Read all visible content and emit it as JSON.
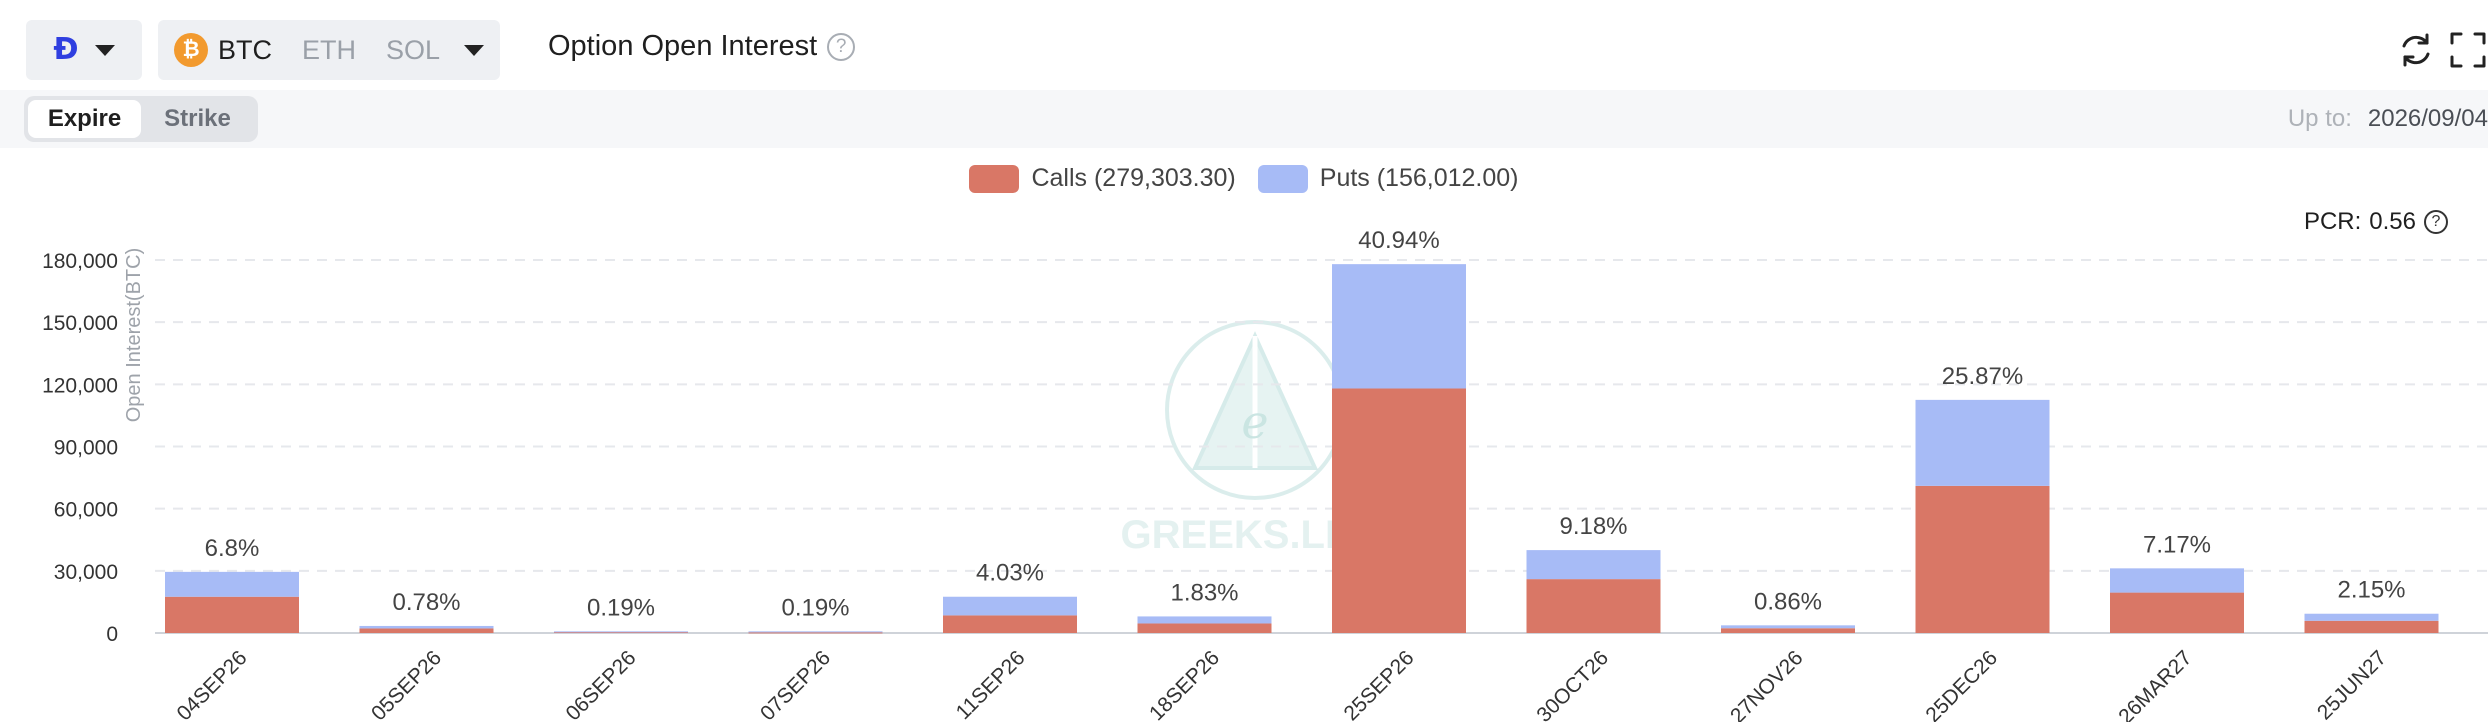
{
  "header": {
    "exchange_icon": "deribit-logo-icon",
    "exchange_glyph": "Ð",
    "coins": [
      {
        "label": "BTC",
        "active": true,
        "icon": "bitcoin-icon",
        "icon_glyph": "₿"
      },
      {
        "label": "ETH",
        "active": false
      },
      {
        "label": "SOL",
        "active": false
      }
    ],
    "title": "Option Open Interest",
    "help_glyph": "?"
  },
  "toolbar": {
    "tabs": [
      {
        "label": "Expire",
        "active": true
      },
      {
        "label": "Strike",
        "active": false
      }
    ],
    "upto_label": "Up to:",
    "upto_value": "2026/09/04"
  },
  "legend": {
    "calls_label": "Calls (279,303.30)",
    "puts_label": "Puts (156,012.00)"
  },
  "pcr": {
    "label": "PCR:",
    "value": "0.56",
    "help_glyph": "?"
  },
  "watermark": {
    "text": "GREEKS.LIVE"
  },
  "colors": {
    "calls": "#d97766",
    "puts": "#a7bbf6",
    "grid": "#e6e8ec",
    "axis_text": "#333333"
  },
  "chart_data": {
    "type": "bar",
    "stacked": true,
    "ylabel": "Open Interest(BTC)",
    "ylim": [
      0,
      180000
    ],
    "yticks": [
      0,
      30000,
      60000,
      90000,
      120000,
      150000,
      180000
    ],
    "ytick_labels": [
      "0",
      "30,000",
      "60,000",
      "90,000",
      "120,000",
      "150,000",
      "180,000"
    ],
    "grid": true,
    "legend_position": "top-center",
    "categories": [
      "04SEP26",
      "05SEP26",
      "06SEP26",
      "07SEP26",
      "11SEP26",
      "18SEP26",
      "25SEP26",
      "30OCT26",
      "27NOV26",
      "25DEC26",
      "26MAR27",
      "25JUN27"
    ],
    "series": [
      {
        "name": "Calls",
        "values": [
          17500,
          2200,
          500,
          300,
          8500,
          4600,
          118000,
          26000,
          2300,
          71000,
          19500,
          5900
        ]
      },
      {
        "name": "Puts",
        "values": [
          12000,
          1200,
          300,
          500,
          9000,
          3400,
          60000,
          14000,
          1400,
          41500,
          11700,
          3400
        ]
      }
    ],
    "percent_labels": [
      "6.8%",
      "0.78%",
      "0.19%",
      "0.19%",
      "4.03%",
      "1.83%",
      "40.94%",
      "9.18%",
      "0.86%",
      "25.87%",
      "7.17%",
      "2.15%"
    ]
  }
}
